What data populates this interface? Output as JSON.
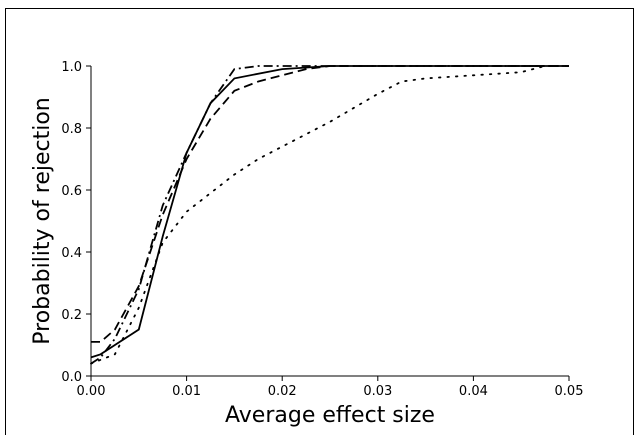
{
  "chart_data": {
    "type": "line",
    "title": "",
    "xlabel": "Average effect size",
    "ylabel": "Probability of rejection",
    "xlim": [
      0,
      0.05
    ],
    "ylim": [
      0,
      1
    ],
    "x_ticks": [
      "0.00",
      "0.01",
      "0.02",
      "0.03",
      "0.04",
      "0.05"
    ],
    "y_ticks": [
      "0.0",
      "0.2",
      "0.4",
      "0.6",
      "0.8",
      "1.0"
    ],
    "grid": false,
    "legend": "none",
    "series": [
      {
        "style": "solid",
        "x": [
          0,
          0.001,
          0.0025,
          0.005,
          0.0075,
          0.01,
          0.0125,
          0.015,
          0.02,
          0.025,
          0.03,
          0.05
        ],
        "y": [
          0.06,
          0.07,
          0.1,
          0.15,
          0.45,
          0.72,
          0.88,
          0.96,
          0.99,
          1.0,
          1.0,
          1.0
        ]
      },
      {
        "style": "dashed",
        "x": [
          0,
          0.001,
          0.0025,
          0.005,
          0.0075,
          0.01,
          0.0125,
          0.015,
          0.0175,
          0.02,
          0.0225,
          0.025,
          0.03,
          0.05
        ],
        "y": [
          0.11,
          0.11,
          0.15,
          0.29,
          0.52,
          0.7,
          0.83,
          0.92,
          0.95,
          0.97,
          0.99,
          1.0,
          1.0,
          1.0
        ]
      },
      {
        "style": "dashdot",
        "x": [
          0,
          0.001,
          0.0025,
          0.005,
          0.0075,
          0.01,
          0.0125,
          0.015,
          0.0175,
          0.02,
          0.025,
          0.05
        ],
        "y": [
          0.04,
          0.06,
          0.12,
          0.28,
          0.55,
          0.72,
          0.88,
          0.99,
          1.0,
          1.0,
          1.0,
          1.0
        ]
      },
      {
        "style": "dotted",
        "x": [
          0,
          0.0025,
          0.005,
          0.0075,
          0.01,
          0.0125,
          0.015,
          0.0175,
          0.02,
          0.025,
          0.03,
          0.0325,
          0.035,
          0.04,
          0.045,
          0.0475,
          0.05
        ],
        "y": [
          0.04,
          0.07,
          0.22,
          0.43,
          0.53,
          0.59,
          0.65,
          0.7,
          0.74,
          0.82,
          0.91,
          0.95,
          0.96,
          0.97,
          0.98,
          1.0,
          1.0
        ]
      }
    ]
  }
}
